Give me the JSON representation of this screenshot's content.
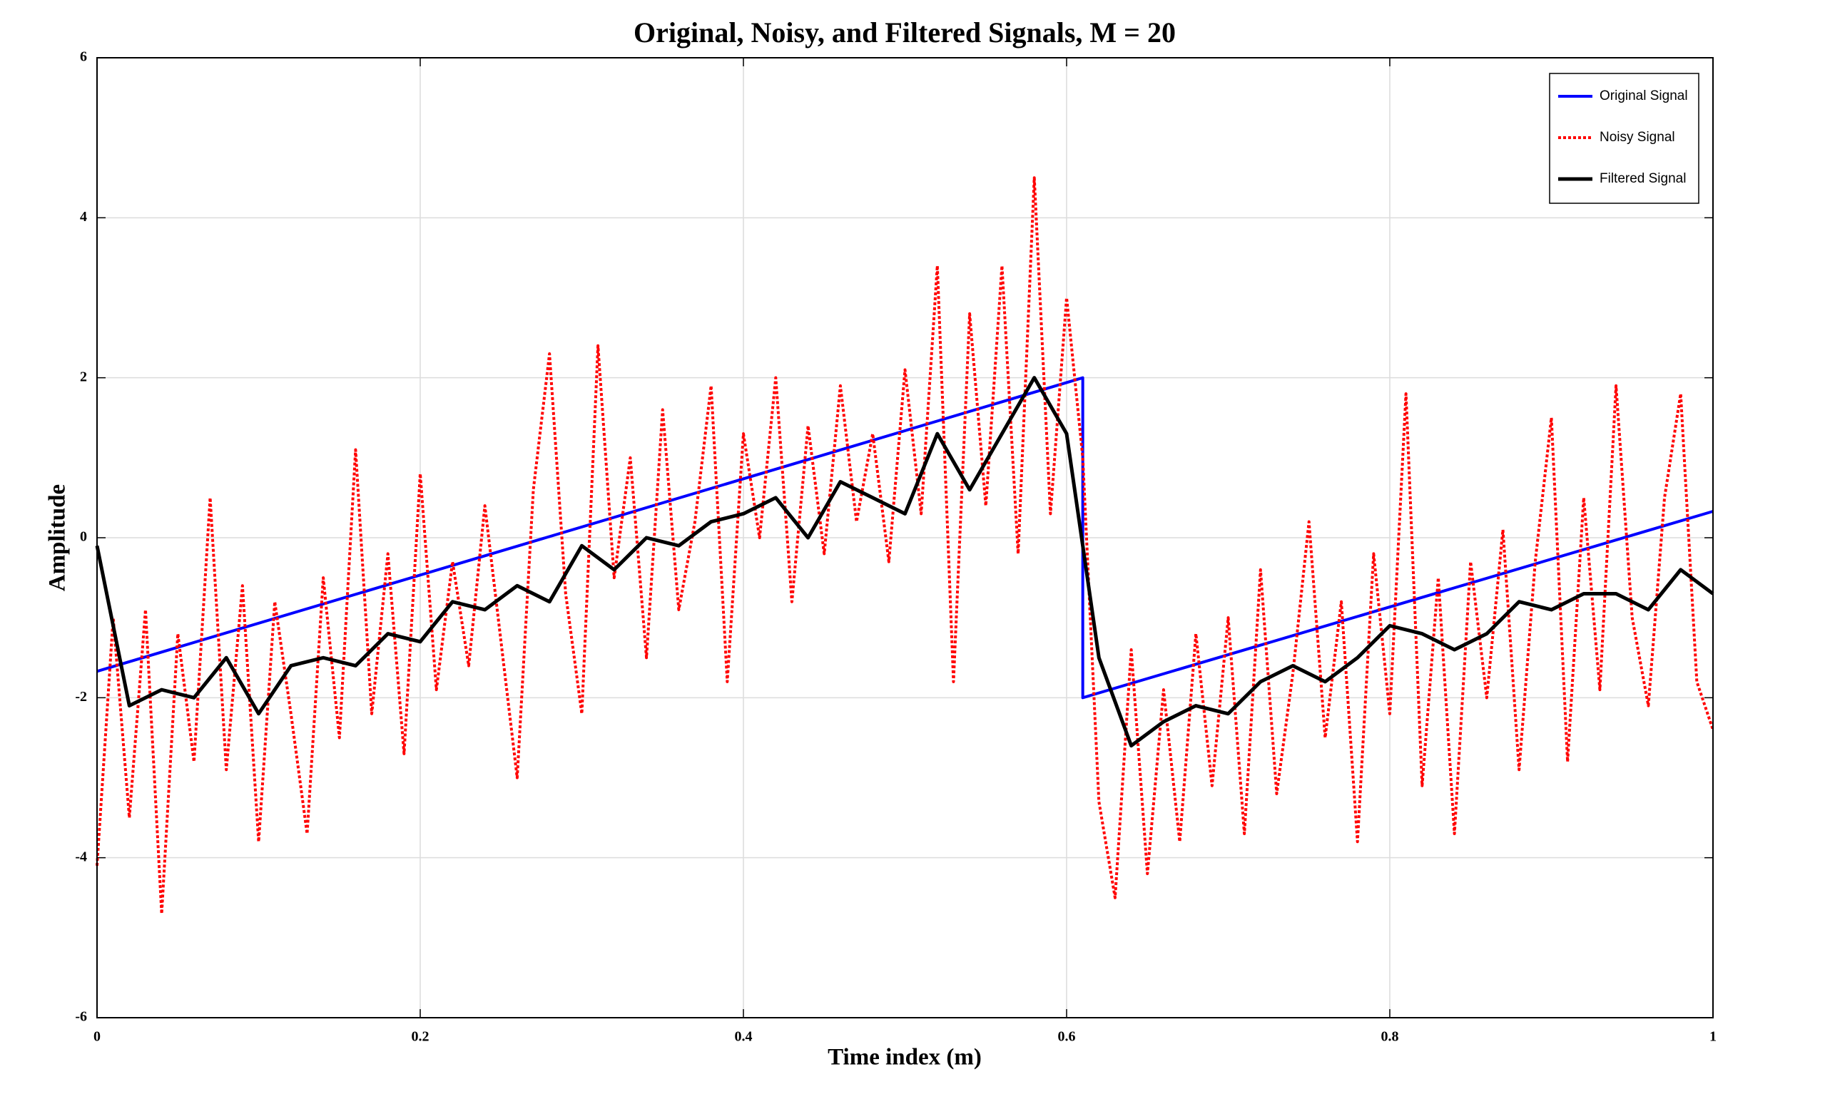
{
  "chart_data": {
    "type": "line",
    "title": "Original, Noisy, and Filtered Signals, M = 20",
    "x_label": "Time index (m)",
    "y_label": "Amplitude",
    "xlim": [
      0,
      1
    ],
    "ylim": [
      -6,
      6
    ],
    "xticks": [
      0,
      0.2,
      0.4,
      0.6,
      0.8,
      1
    ],
    "yticks": [
      -6,
      -4,
      -2,
      0,
      2,
      4,
      6
    ],
    "grid": true,
    "legend": "upper right",
    "series": [
      {
        "name": "Original Signal",
        "color": "#0000ff",
        "line_style": "solid",
        "x": [
          0,
          0.61,
          0.61,
          1
        ],
        "values": [
          -1.67,
          2,
          -2,
          0.33
        ]
      },
      {
        "name": "Noisy Signal",
        "color": "#ff0000",
        "line_style": "dotted",
        "x": [
          0,
          0.01,
          0.02,
          0.03,
          0.04,
          0.05,
          0.06,
          0.07,
          0.08,
          0.09,
          0.1,
          0.11,
          0.12,
          0.13,
          0.14,
          0.15,
          0.16,
          0.17,
          0.18,
          0.19,
          0.2,
          0.21,
          0.22,
          0.23,
          0.24,
          0.25,
          0.26,
          0.27,
          0.28,
          0.29,
          0.3,
          0.31,
          0.32,
          0.33,
          0.34,
          0.35,
          0.36,
          0.37,
          0.38,
          0.39,
          0.4,
          0.41,
          0.42,
          0.43,
          0.44,
          0.45,
          0.46,
          0.47,
          0.48,
          0.49,
          0.5,
          0.51,
          0.52,
          0.53,
          0.54,
          0.55,
          0.56,
          0.57,
          0.58,
          0.59,
          0.6,
          0.61,
          0.62,
          0.63,
          0.64,
          0.65,
          0.66,
          0.67,
          0.68,
          0.69,
          0.7,
          0.71,
          0.72,
          0.73,
          0.74,
          0.75,
          0.76,
          0.77,
          0.78,
          0.79,
          0.8,
          0.81,
          0.82,
          0.83,
          0.84,
          0.85,
          0.86,
          0.87,
          0.88,
          0.89,
          0.9,
          0.91,
          0.92,
          0.93,
          0.94,
          0.95,
          0.96,
          0.97,
          0.98,
          0.99,
          1
        ],
        "values": [
          -4.1,
          -1.0,
          -3.5,
          -0.9,
          -4.7,
          -1.2,
          -2.8,
          0.5,
          -2.9,
          -0.6,
          -3.8,
          -0.8,
          -2.2,
          -3.7,
          -0.5,
          -2.5,
          1.1,
          -2.2,
          -0.2,
          -2.7,
          0.8,
          -1.9,
          -0.3,
          -1.6,
          0.4,
          -1.3,
          -3.0,
          0.6,
          2.3,
          -0.7,
          -2.2,
          2.4,
          -0.5,
          1.0,
          -1.5,
          1.6,
          -0.9,
          0.2,
          1.9,
          -1.8,
          1.3,
          0.0,
          2.0,
          -0.8,
          1.4,
          -0.2,
          1.9,
          0.2,
          1.3,
          -0.3,
          2.1,
          0.3,
          3.4,
          -1.8,
          2.8,
          0.4,
          3.4,
          -0.2,
          4.5,
          0.3,
          3.0,
          1.0,
          -3.3,
          -4.5,
          -1.4,
          -4.2,
          -1.9,
          -3.8,
          -1.2,
          -3.1,
          -1.0,
          -3.7,
          -0.4,
          -3.2,
          -1.7,
          0.2,
          -2.5,
          -0.8,
          -3.8,
          -0.2,
          -2.2,
          1.8,
          -3.1,
          -0.5,
          -3.7,
          -0.3,
          -2.0,
          0.1,
          -2.9,
          -0.3,
          1.5,
          -2.8,
          0.5,
          -1.9,
          1.9,
          -1.0,
          -2.1,
          0.5,
          1.8,
          -1.8,
          -2.4
        ]
      },
      {
        "name": "Filtered Signal",
        "color": "#000000",
        "line_style": "solid",
        "x": [
          0,
          0.02,
          0.04,
          0.06,
          0.08,
          0.1,
          0.12,
          0.14,
          0.16,
          0.18,
          0.2,
          0.22,
          0.24,
          0.26,
          0.28,
          0.3,
          0.32,
          0.34,
          0.36,
          0.38,
          0.4,
          0.42,
          0.44,
          0.46,
          0.48,
          0.5,
          0.52,
          0.54,
          0.56,
          0.58,
          0.6,
          0.62,
          0.64,
          0.66,
          0.68,
          0.7,
          0.72,
          0.74,
          0.76,
          0.78,
          0.8,
          0.82,
          0.84,
          0.86,
          0.88,
          0.9,
          0.92,
          0.94,
          0.96,
          0.98,
          1
        ],
        "values": [
          -0.1,
          -2.1,
          -1.9,
          -2.0,
          -1.5,
          -2.2,
          -1.6,
          -1.5,
          -1.6,
          -1.2,
          -1.3,
          -0.8,
          -0.9,
          -0.6,
          -0.8,
          -0.1,
          -0.4,
          0.0,
          -0.1,
          0.2,
          0.3,
          0.5,
          0.0,
          0.7,
          0.5,
          0.3,
          1.3,
          0.6,
          1.3,
          2.0,
          1.3,
          -1.5,
          -2.6,
          -2.3,
          -2.1,
          -2.2,
          -1.8,
          -1.6,
          -1.8,
          -1.5,
          -1.1,
          -1.2,
          -1.4,
          -1.2,
          -0.8,
          -0.9,
          -0.7,
          -0.7,
          -0.9,
          -0.4,
          -0.7
        ]
      }
    ]
  }
}
